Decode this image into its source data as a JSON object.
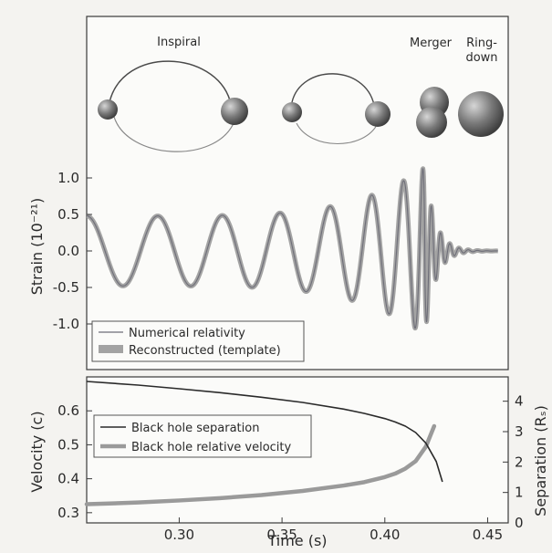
{
  "colors": {
    "background": "#f4f3f0",
    "panel": "#fbfbf9",
    "strain_nr": "#6e6e78",
    "strain_template": "#a3a3a3",
    "separation": "#2a2a2a",
    "velocity": "#9a9a9a",
    "body_dark": "#6d6d6d"
  },
  "phases": {
    "inspiral": "Inspiral",
    "merger": "Merger",
    "ringdown_line1": "Ring-",
    "ringdown_line2": "down"
  },
  "chart_data": [
    {
      "type": "line",
      "ylabel": "Strain (10⁻²¹)",
      "ylim": [
        -1.6,
        1.6
      ],
      "y_ticks": [
        -1.0,
        -0.5,
        0.0,
        0.5,
        1.0
      ],
      "y_tick_labels": [
        "-1.0",
        "-0.5",
        "0.0",
        "0.5",
        "1.0"
      ],
      "xlim": [
        0.255,
        0.46
      ],
      "x_range_plotted": [
        0.255,
        0.455
      ],
      "waveform": {
        "merger_time": 0.4195,
        "cycles_before_merger": 7.3,
        "initial_amplitude": 0.48,
        "peak_amplitude": 1.15,
        "ringdown_period": 0.0045,
        "ringdown_decay": 0.005
      },
      "series": [
        {
          "name": "Numerical relativity",
          "style": "thin line"
        },
        {
          "name": "Reconstructed (template)",
          "style": "thick band"
        }
      ],
      "legend": "bottom-left",
      "grid": false
    },
    {
      "type": "line",
      "xlabel": "Time (s)",
      "ylabel": "Velocity (c)",
      "y2label": "Separation (Rₛ)",
      "xlim": [
        0.255,
        0.46
      ],
      "x_ticks": [
        0.3,
        0.35,
        0.4,
        0.45
      ],
      "x_tick_labels": [
        "0.30",
        "0.35",
        "0.40",
        "0.45"
      ],
      "ylim": [
        0.27,
        0.7
      ],
      "y_ticks": [
        0.3,
        0.4,
        0.5,
        0.6
      ],
      "y_tick_labels": [
        "0.3",
        "0.4",
        "0.5",
        "0.6"
      ],
      "y2lim": [
        0,
        4.8
      ],
      "y2_ticks": [
        0,
        1,
        2,
        3,
        4
      ],
      "y2_tick_labels": [
        "0",
        "1",
        "2",
        "3",
        "4"
      ],
      "series": [
        {
          "name": "Black hole separation",
          "axis": "right",
          "x": [
            0.255,
            0.28,
            0.3,
            0.32,
            0.34,
            0.36,
            0.38,
            0.39,
            0.4,
            0.405,
            0.41,
            0.415,
            0.42,
            0.425,
            0.428
          ],
          "y": [
            4.65,
            4.53,
            4.41,
            4.28,
            4.13,
            3.96,
            3.74,
            3.6,
            3.43,
            3.32,
            3.18,
            2.97,
            2.62,
            2.02,
            1.35
          ]
        },
        {
          "name": "Black hole relative velocity",
          "axis": "left",
          "x": [
            0.255,
            0.28,
            0.3,
            0.32,
            0.34,
            0.36,
            0.38,
            0.39,
            0.4,
            0.405,
            0.41,
            0.415,
            0.42,
            0.424
          ],
          "y": [
            0.325,
            0.33,
            0.336,
            0.343,
            0.352,
            0.364,
            0.38,
            0.39,
            0.405,
            0.415,
            0.43,
            0.452,
            0.495,
            0.555
          ]
        }
      ],
      "legend": "center-left",
      "grid": false
    }
  ]
}
